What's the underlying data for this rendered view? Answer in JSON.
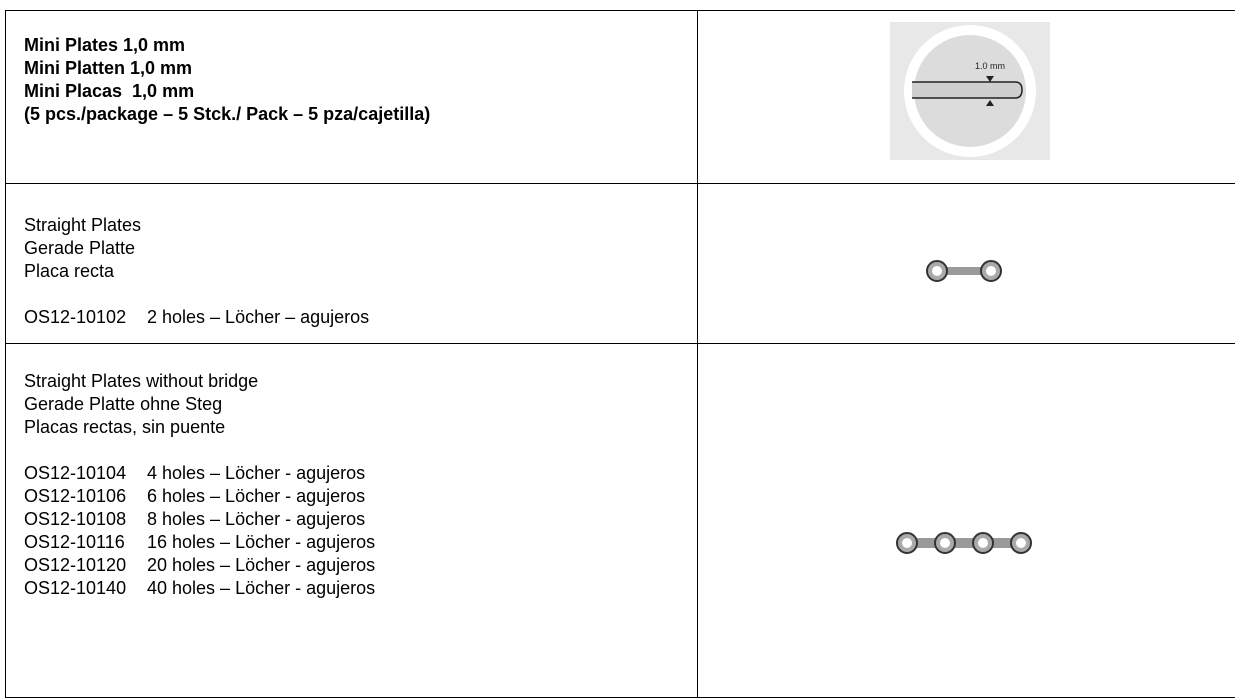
{
  "table": {
    "rows": [
      {
        "lines": [
          "Mini Plates 1,0 mm",
          "Mini Platten 1,0 mm",
          "Mini Placas  1,0 mm",
          "(5 pcs./package – 5 Stck./ Pack – 5 pza/cajetilla)"
        ],
        "image_label": "1.0 mm"
      },
      {
        "lines": [
          "Straight Plates",
          "Gerade Platte",
          "Placa recta"
        ],
        "items": [
          {
            "code": "OS12-10102",
            "desc": "2 holes – Löcher – agujeros"
          }
        ]
      },
      {
        "lines": [
          "Straight Plates without bridge",
          "Gerade Platte ohne Steg",
          "Placas rectas, sin puente"
        ],
        "items": [
          {
            "code": "OS12-10104",
            "desc": "4 holes – Löcher - agujeros"
          },
          {
            "code": "OS12-10106",
            "desc": "6 holes – Löcher - agujeros"
          },
          {
            "code": "OS12-10108",
            "desc": "8 holes – Löcher - agujeros"
          },
          {
            "code": "OS12-10116",
            "desc": "16 holes – Löcher - agujeros"
          },
          {
            "code": "OS12-10120",
            "desc": "20 holes – Löcher - agujeros"
          },
          {
            "code": "OS12-10140",
            "desc": "40 holes – Löcher - agujeros"
          }
        ]
      }
    ]
  }
}
